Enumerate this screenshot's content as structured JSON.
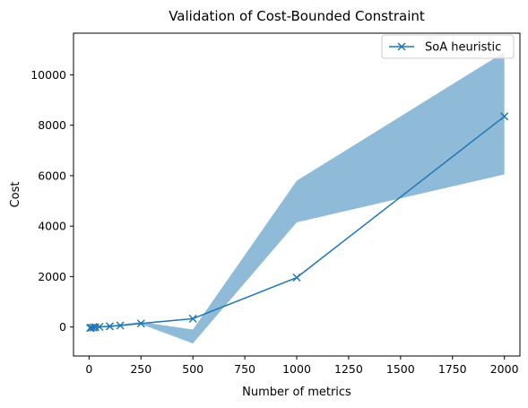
{
  "chart_data": {
    "type": "line",
    "title": "Validation of Cost-Bounded Constraint",
    "xlabel": "Number of metrics",
    "ylabel": "Cost",
    "xlim": [
      -75,
      2075
    ],
    "ylim": [
      -1150,
      11650
    ],
    "xticks": [
      0,
      250,
      500,
      750,
      1000,
      1250,
      1500,
      1750,
      2000
    ],
    "xtick_labels": [
      "0",
      "250",
      "500",
      "750",
      "1000",
      "1250",
      "1500",
      "1750",
      "2000"
    ],
    "yticks": [
      0,
      2000,
      4000,
      6000,
      8000,
      10000
    ],
    "ytick_labels": [
      "0",
      "2000",
      "4000",
      "6000",
      "8000",
      "10000"
    ],
    "grid": false,
    "legend_position": "top-right",
    "series": [
      {
        "name": "SoA heuristic",
        "color": "#1f77b4",
        "marker": "x",
        "x": [
          5,
          10,
          20,
          30,
          50,
          100,
          150,
          250,
          500,
          1000,
          2000
        ],
        "y": [
          -40,
          -30,
          -20,
          -10,
          5,
          25,
          60,
          140,
          330,
          1960,
          8350
        ]
      }
    ],
    "band": {
      "color": "#1f77b4",
      "opacity": 0.5,
      "x": [
        5,
        10,
        20,
        30,
        50,
        100,
        150,
        250,
        500,
        1000,
        2000
      ],
      "lower": [
        -80,
        -60,
        -50,
        -35,
        -20,
        0,
        30,
        110,
        -650,
        4150,
        6050
      ],
      "upper": [
        0,
        0,
        10,
        15,
        30,
        60,
        100,
        200,
        -100,
        5800,
        10900
      ]
    }
  }
}
